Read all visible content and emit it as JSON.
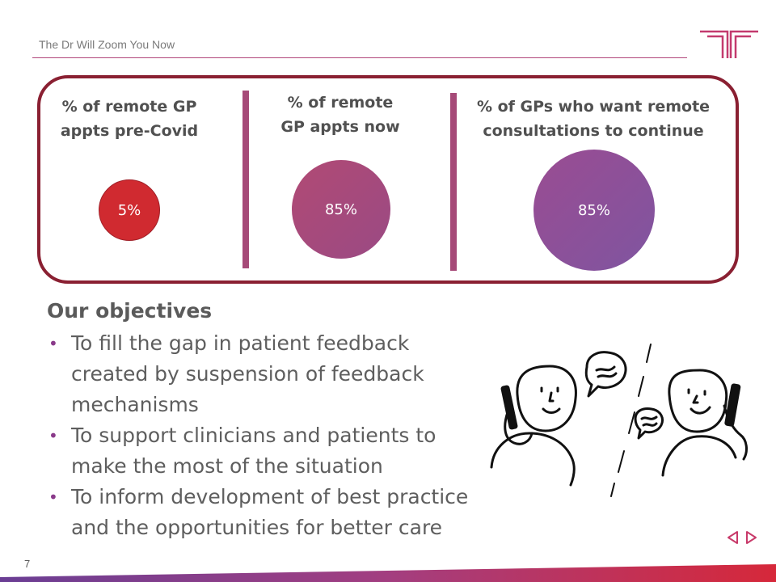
{
  "header": {
    "title": "The Dr Will Zoom You Now"
  },
  "stats": [
    {
      "label_line1": "% of remote GP",
      "label_line2": "appts pre-Covid",
      "value": "5%",
      "color": "#d02a30"
    },
    {
      "label_line1": "% of remote",
      "label_line2": "GP appts now",
      "value": "85%",
      "color": "#a84a7c"
    },
    {
      "label_line1": "% of GPs who want remote",
      "label_line2": "consultations to continue",
      "value": "85%",
      "color": "#8d4f97"
    }
  ],
  "objectives": {
    "heading": "Our objectives",
    "items": [
      {
        "line1": "To fill the gap in patient feedback",
        "line2": "created by suspension of feedback",
        "line3": "mechanisms"
      },
      {
        "line1": "To support clinicians and patients to",
        "line2": "make the most of the situation"
      },
      {
        "line1": "To inform development of best practice",
        "line2": "and the opportunities for better care"
      }
    ],
    "bullet": "•"
  },
  "footer": {
    "page_number": "7"
  },
  "colors": {
    "brand": "#b1467a",
    "frame": "#8a2032",
    "nav": "#c83a6a"
  }
}
